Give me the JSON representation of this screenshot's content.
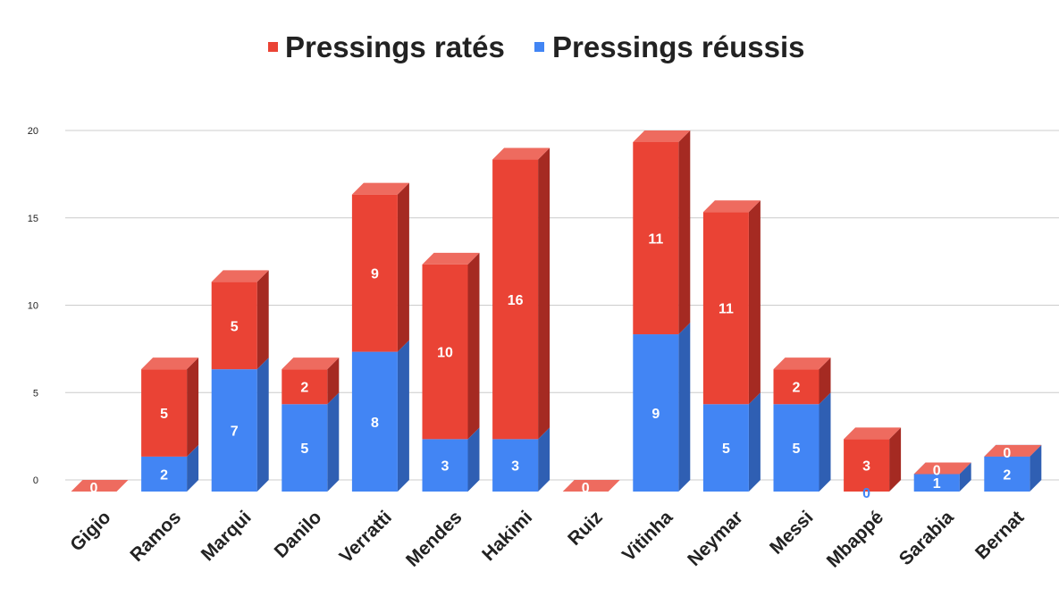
{
  "chart_data": {
    "type": "bar",
    "stacked": true,
    "style": "3d",
    "categories": [
      "Gigio",
      "Ramos",
      "Marqui",
      "Danilo",
      "Verratti",
      "Mendes",
      "Hakimi",
      "Ruiz",
      "Vitinha",
      "Neymar",
      "Messi",
      "Mbappé",
      "Sarabia",
      "Bernat"
    ],
    "series": [
      {
        "name": "Pressings réussis",
        "color": "#4285f4",
        "side_color": "#2f5fb3",
        "values": [
          0,
          2,
          7,
          5,
          8,
          3,
          3,
          0,
          9,
          5,
          5,
          0,
          1,
          2
        ]
      },
      {
        "name": "Pressings ratés",
        "color": "#ea4335",
        "side_color": "#a52a22",
        "top_color": "#ee6b5f",
        "values": [
          0,
          5,
          5,
          2,
          9,
          10,
          16,
          0,
          11,
          11,
          2,
          3,
          0,
          0
        ]
      }
    ],
    "legend_order": [
      "Pressings ratés",
      "Pressings réussis"
    ],
    "legend_position": "top",
    "yticks": [
      0,
      5,
      10,
      15,
      20
    ],
    "ylim": [
      0,
      20
    ],
    "grid": true,
    "title": "",
    "xlabel": "",
    "ylabel": ""
  }
}
